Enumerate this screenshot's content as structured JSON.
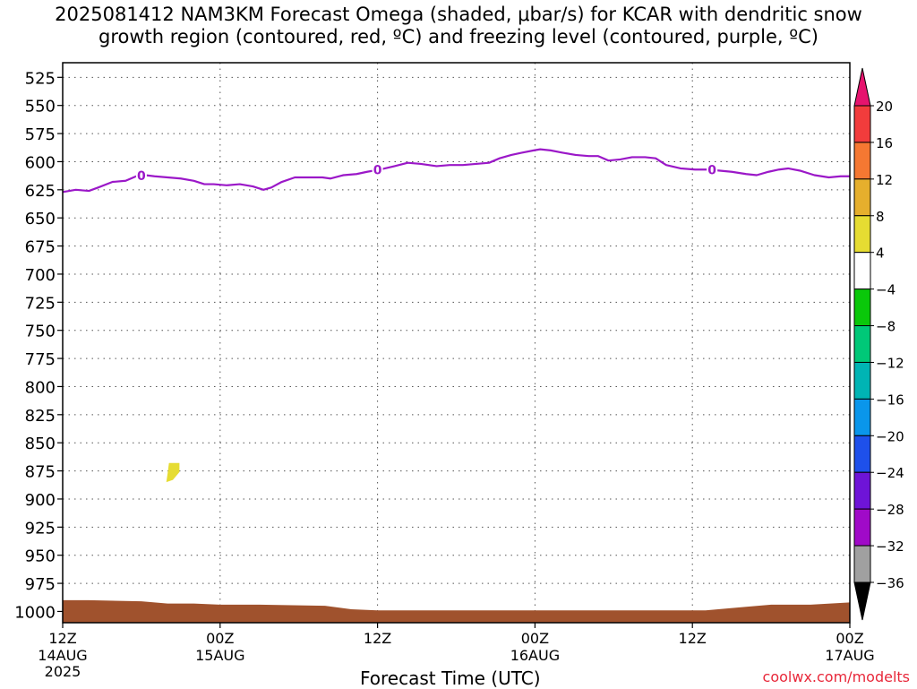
{
  "chart_data": {
    "type": "heatmap",
    "title": "2025081412 NAM3KM Forecast Omega (shaded, μbar/s) for KCAR with dendritic snow\ngrowth region (contoured, red, ºC) and freezing level (contoured, purple, ºC)",
    "xlabel": "Forecast Time (UTC)",
    "ylabel": "",
    "y_axis": {
      "unit": "hPa",
      "inverted": true,
      "ylim": [
        1010,
        512
      ],
      "ticks": [
        525,
        550,
        575,
        600,
        625,
        650,
        675,
        700,
        725,
        750,
        775,
        800,
        825,
        850,
        875,
        900,
        925,
        950,
        975,
        1000
      ],
      "grid": true
    },
    "x_axis": {
      "range_hours": [
        0,
        60
      ],
      "ticks": [
        {
          "hour": 0,
          "label": "12Z",
          "date": "14AUG",
          "year": "2025"
        },
        {
          "hour": 12,
          "label": "00Z",
          "date": "15AUG",
          "year": ""
        },
        {
          "hour": 24,
          "label": "12Z",
          "date": "",
          "year": ""
        },
        {
          "hour": 36,
          "label": "00Z",
          "date": "16AUG",
          "year": ""
        },
        {
          "hour": 48,
          "label": "12Z",
          "date": "",
          "year": ""
        },
        {
          "hour": 60,
          "label": "00Z",
          "date": "17AUG",
          "year": ""
        }
      ],
      "grid": true
    },
    "freezing_level": {
      "color": "#9b18c8",
      "label": "0",
      "label_hours": [
        6,
        24,
        49.5
      ],
      "points": [
        [
          0,
          627
        ],
        [
          1,
          625
        ],
        [
          2,
          626
        ],
        [
          2.7,
          623
        ],
        [
          3.8,
          618
        ],
        [
          4.8,
          617
        ],
        [
          5.6,
          613
        ],
        [
          6.3,
          612
        ],
        [
          7,
          613
        ],
        [
          8,
          614
        ],
        [
          9,
          615
        ],
        [
          10,
          617
        ],
        [
          10.8,
          620
        ],
        [
          11.5,
          620
        ],
        [
          12.5,
          621
        ],
        [
          13.5,
          620
        ],
        [
          14.5,
          622
        ],
        [
          15.3,
          625
        ],
        [
          15.9,
          623
        ],
        [
          16.7,
          618
        ],
        [
          17.7,
          614
        ],
        [
          18.9,
          614
        ],
        [
          19.8,
          614
        ],
        [
          20.4,
          615
        ],
        [
          21.4,
          612
        ],
        [
          22.4,
          611
        ],
        [
          23.2,
          609
        ],
        [
          24.2,
          607
        ],
        [
          25.3,
          604
        ],
        [
          26.3,
          601
        ],
        [
          27.3,
          602
        ],
        [
          28.5,
          604
        ],
        [
          29.5,
          603
        ],
        [
          30.5,
          603
        ],
        [
          31.5,
          602
        ],
        [
          32.5,
          601
        ],
        [
          33.3,
          597
        ],
        [
          34.2,
          594
        ],
        [
          35,
          592
        ],
        [
          35.9,
          590
        ],
        [
          36.4,
          589
        ],
        [
          37.2,
          590
        ],
        [
          38.1,
          592
        ],
        [
          39.1,
          594
        ],
        [
          40.1,
          595
        ],
        [
          40.8,
          595
        ],
        [
          41.6,
          599
        ],
        [
          42.5,
          598
        ],
        [
          43.4,
          596
        ],
        [
          44.4,
          596
        ],
        [
          45.2,
          597
        ],
        [
          46,
          603
        ],
        [
          47.1,
          606
        ],
        [
          48.2,
          607
        ],
        [
          49.2,
          607
        ],
        [
          50.1,
          608
        ],
        [
          51,
          609
        ],
        [
          52.1,
          611
        ],
        [
          52.9,
          612
        ],
        [
          53.8,
          609
        ],
        [
          54.6,
          607
        ],
        [
          55.3,
          606
        ],
        [
          56.2,
          608
        ],
        [
          57.3,
          612
        ],
        [
          58.4,
          614
        ],
        [
          59.3,
          613
        ],
        [
          60,
          613
        ]
      ]
    },
    "shaded_areas": [
      {
        "name": "omega 4 to 8",
        "color": "#e6dc32",
        "points": [
          [
            8.1,
            868
          ],
          [
            8.9,
            868
          ],
          [
            8.9,
            876
          ],
          [
            8.4,
            883
          ],
          [
            7.9,
            885
          ],
          [
            8.0,
            877
          ]
        ]
      }
    ],
    "terrain": {
      "color": "#a0522d",
      "surface": [
        [
          0,
          990
        ],
        [
          2,
          990
        ],
        [
          6,
          991
        ],
        [
          8,
          993
        ],
        [
          10,
          993
        ],
        [
          12,
          994
        ],
        [
          15,
          994
        ],
        [
          20,
          995
        ],
        [
          22,
          998
        ],
        [
          24,
          999
        ],
        [
          26,
          999
        ],
        [
          30,
          999
        ],
        [
          36,
          999
        ],
        [
          42,
          999
        ],
        [
          49,
          999
        ],
        [
          52,
          996
        ],
        [
          54,
          994
        ],
        [
          57,
          994
        ],
        [
          58.5,
          993
        ],
        [
          60,
          992
        ]
      ]
    },
    "colorbar": {
      "bins": [
        {
          "from": 16,
          "to": 20,
          "color": "#f23c3c"
        },
        {
          "from": 12,
          "to": 16,
          "color": "#f57832"
        },
        {
          "from": 8,
          "to": 12,
          "color": "#e6af2d"
        },
        {
          "from": 4,
          "to": 8,
          "color": "#e6dc32"
        },
        {
          "from": -4,
          "to": 4,
          "color": "#ffffff"
        },
        {
          "from": -8,
          "to": -4,
          "color": "#0ac80a"
        },
        {
          "from": -12,
          "to": -8,
          "color": "#00c878"
        },
        {
          "from": -16,
          "to": -12,
          "color": "#00b4b4"
        },
        {
          "from": -20,
          "to": -16,
          "color": "#0a96eb"
        },
        {
          "from": -24,
          "to": -20,
          "color": "#1e50eb"
        },
        {
          "from": -28,
          "to": -24,
          "color": "#6e14d7"
        },
        {
          "from": -32,
          "to": -28,
          "color": "#a00ac8"
        },
        {
          "from": -36,
          "to": -32,
          "color": "#a0a0a0"
        }
      ],
      "top_arrow_color": "#e6146e",
      "bottom_arrow_color": "#000000",
      "labels": [
        "20",
        "16",
        "12",
        "8",
        "4",
        "−4",
        "−8",
        "−12",
        "−16",
        "−20",
        "−24",
        "−28",
        "−32",
        "−36"
      ]
    }
  },
  "credit": "coolwx.com/modelts"
}
